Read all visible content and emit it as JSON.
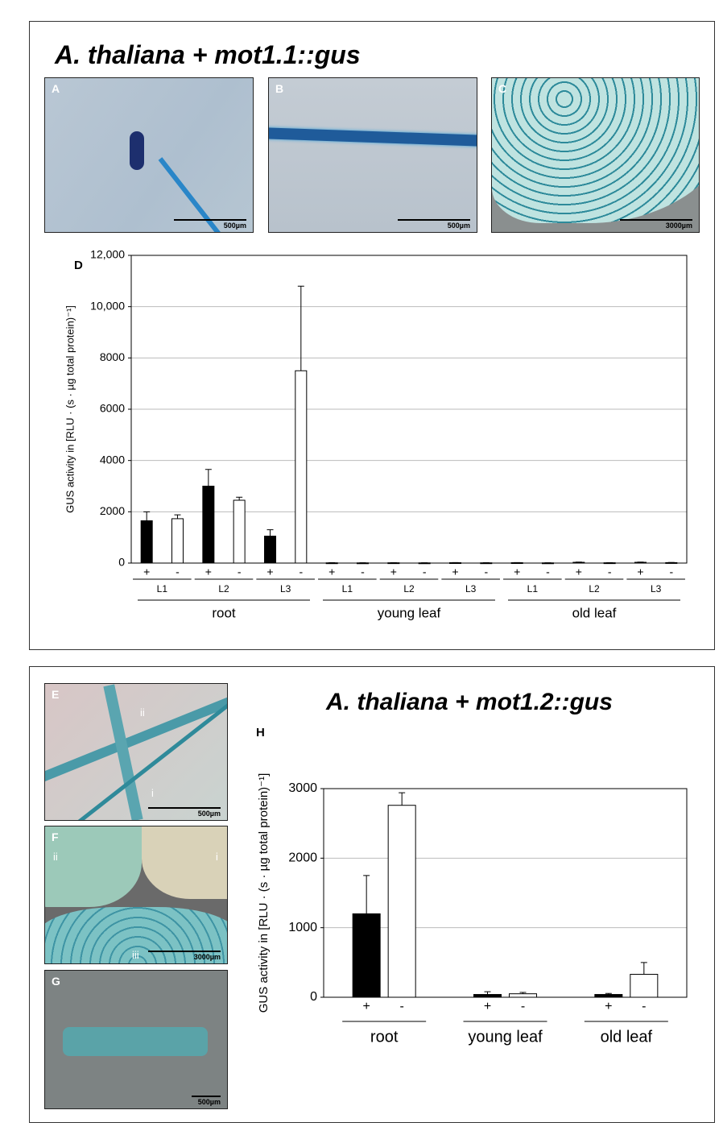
{
  "figure": {
    "title_top": "A. thaliana + mot1.1::gus",
    "title_bottom": "A. thaliana + mot1.2::gus",
    "panels": [
      {
        "label": "A",
        "scale": "500µm"
      },
      {
        "label": "B",
        "scale": "500µm"
      },
      {
        "label": "C",
        "scale": "3000µm"
      },
      {
        "label": "E",
        "scale": "500µm"
      },
      {
        "label": "F",
        "scale": "3000µm"
      },
      {
        "label": "G",
        "scale": "500µm"
      }
    ],
    "panel_e_marks": [
      "ii",
      "i"
    ],
    "panel_f_marks": [
      "ii",
      "i",
      "iii"
    ]
  },
  "chart_data": [
    {
      "type": "bar",
      "label": "D",
      "y_label": "GUS activity in [RLU · (s · µg total protein)⁻¹]",
      "categories": [
        "L1",
        "L2",
        "L3",
        "L1",
        "L2",
        "L3",
        "L1",
        "L2",
        "L3"
      ],
      "groups": [
        "root",
        "young leaf",
        "old leaf"
      ],
      "series": [
        {
          "name": "+",
          "color": "#000000",
          "values": [
            1650,
            3000,
            1050,
            10,
            12,
            15,
            15,
            30,
            30
          ],
          "errors": [
            350,
            650,
            250,
            5,
            5,
            5,
            5,
            8,
            8
          ]
        },
        {
          "name": "-",
          "color": "#ffffff",
          "values": [
            1730,
            2450,
            7500,
            8,
            8,
            10,
            8,
            12,
            18
          ],
          "errors": [
            150,
            120,
            3300,
            4,
            4,
            4,
            4,
            5,
            6
          ]
        }
      ],
      "ylim": [
        0,
        12000
      ],
      "yticks": [
        0,
        2000,
        4000,
        6000,
        8000,
        {
          "value": 10000,
          "label": "10,000"
        },
        {
          "value": 12000,
          "label": "12,000"
        }
      ],
      "grid": true
    },
    {
      "type": "bar",
      "label": "H",
      "y_label": "GUS activity in [RLU · (s · µg total protein)⁻¹]",
      "categories": [
        "root",
        "young leaf",
        "old leaf"
      ],
      "series": [
        {
          "name": "+",
          "color": "#000000",
          "values": [
            1200,
            40,
            40
          ],
          "errors": [
            550,
            40,
            15
          ]
        },
        {
          "name": "-",
          "color": "#ffffff",
          "values": [
            2760,
            50,
            330
          ],
          "errors": [
            180,
            20,
            170
          ]
        }
      ],
      "ylim": [
        0,
        3000
      ],
      "yticks": [
        0,
        1000,
        2000,
        3000
      ],
      "grid": true
    }
  ]
}
